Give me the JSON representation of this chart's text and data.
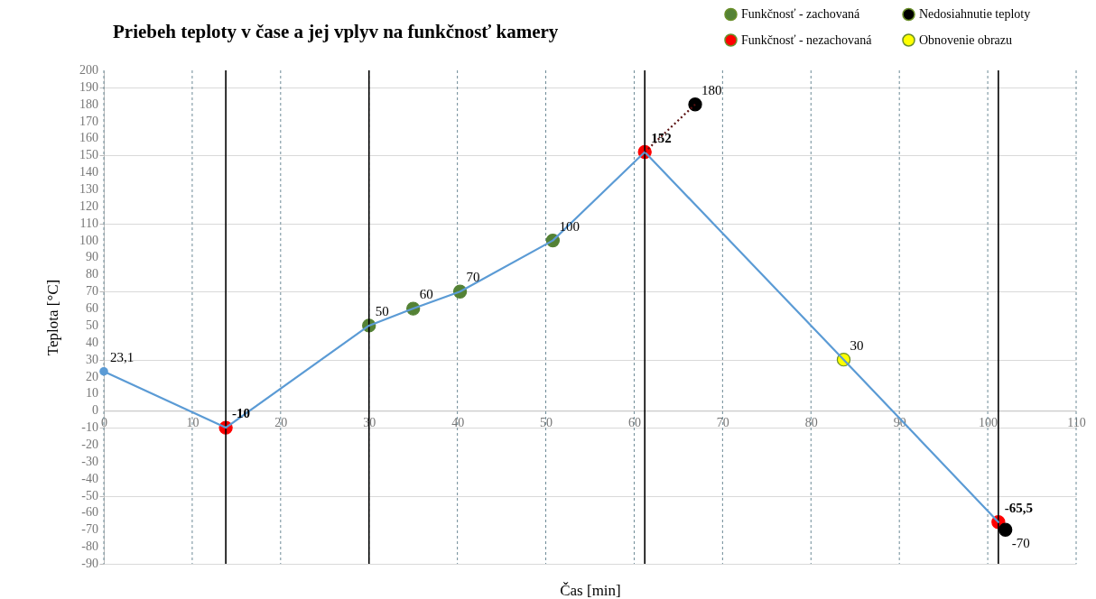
{
  "chart_data": {
    "type": "line",
    "title": "Priebeh teploty v čase a jej vplyv na funkčnosť kamery",
    "xlabel": "Čas [min]",
    "ylabel": "Teplota [°C]",
    "xlim": [
      0,
      110
    ],
    "xticks": [
      0,
      10,
      20,
      30,
      40,
      50,
      60,
      70,
      80,
      90,
      100,
      110
    ],
    "ylim": [
      -90,
      200
    ],
    "yticks": [
      -90,
      -80,
      -70,
      -60,
      -50,
      -40,
      -30,
      -20,
      -10,
      0,
      10,
      20,
      30,
      40,
      50,
      60,
      70,
      80,
      90,
      100,
      110,
      120,
      130,
      140,
      150,
      160,
      170,
      180,
      190,
      200
    ],
    "grid": true,
    "legend": "top right",
    "ref_lines": [
      {
        "axis": "x",
        "value": 13.8,
        "color": "#000000"
      },
      {
        "axis": "x",
        "value": 30,
        "color": "#000000"
      },
      {
        "axis": "x",
        "value": 61.2,
        "color": "#000000"
      },
      {
        "axis": "x",
        "value": 101.2,
        "color": "#000000"
      }
    ],
    "series": [
      {
        "color": "#5b9bd5",
        "line_style": "solid",
        "x": [
          0,
          13.8,
          30,
          35,
          40.3,
          50.8,
          61.2,
          83.7,
          101.2
        ],
        "values": [
          23.1,
          -10,
          50,
          60,
          70,
          100,
          152,
          30,
          -65.5
        ]
      },
      {
        "type": "line",
        "color": "#5a1010",
        "line_style": "dotted",
        "x": [
          61.2,
          66.9
        ],
        "values": [
          152,
          180
        ]
      },
      {
        "type": "scatter",
        "marker": "circle",
        "color": "#5b9bd5",
        "x": [
          0
        ],
        "values": [
          23.1
        ],
        "value_labels": [
          "23,1"
        ]
      },
      {
        "type": "scatter",
        "marker": "circle",
        "name": "Funkčnosť - zachovaná",
        "color": "#548235",
        "x": [
          30,
          35,
          40.3,
          50.8
        ],
        "values": [
          50,
          60,
          70,
          100
        ],
        "value_labels": [
          "50",
          "60",
          "70",
          "100"
        ]
      },
      {
        "type": "scatter",
        "marker": "circle",
        "name": "Funkčnosť - nezachovaná",
        "color": "#ff0000",
        "x": [
          13.8,
          61.2,
          101.2
        ],
        "values": [
          -10,
          152,
          -65.5
        ],
        "value_labels": [
          "-10",
          "152",
          "-65,5"
        ]
      },
      {
        "type": "scatter",
        "marker": "circle",
        "name": "Nedosiahnutie teploty",
        "color": "#000000",
        "x": [
          66.9,
          102.0
        ],
        "values": [
          180,
          -70
        ],
        "value_labels": [
          "180",
          "-70"
        ]
      },
      {
        "type": "scatter",
        "marker": "circle",
        "name": "Obnovenie obrazu",
        "color": "#ffff00",
        "x": [
          83.7
        ],
        "values": [
          30
        ],
        "value_labels": [
          "30"
        ]
      }
    ]
  }
}
